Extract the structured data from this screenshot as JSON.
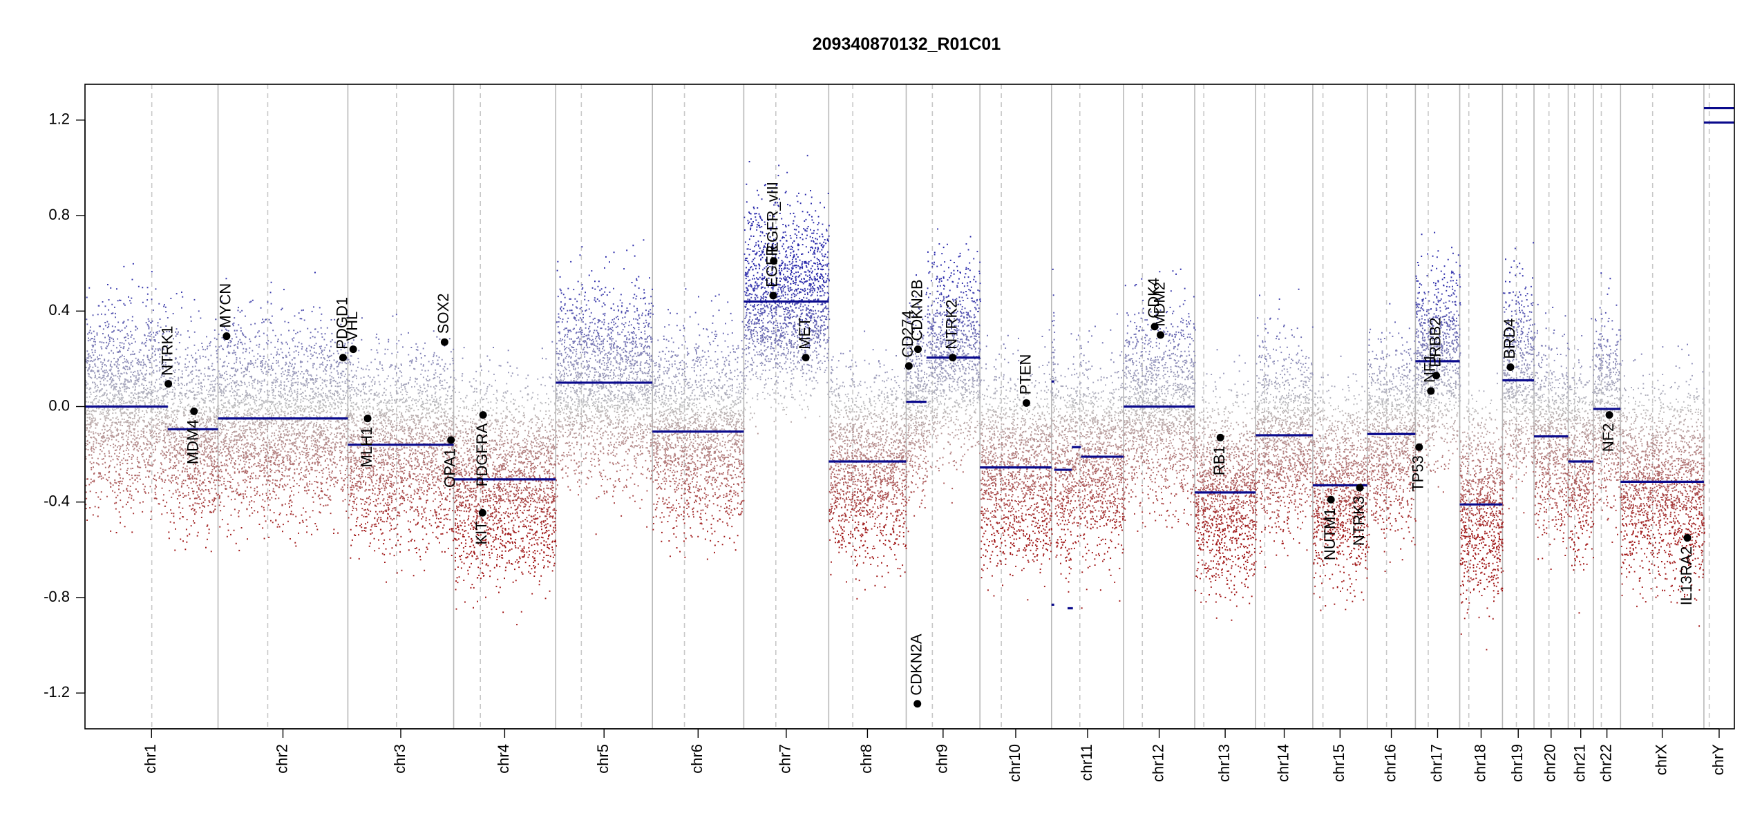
{
  "chart_data": {
    "type": "scatter",
    "title": "209340870132_R01C01",
    "xlabel": "",
    "ylabel": "",
    "ylim": [
      -1.35,
      1.35
    ],
    "yticks": [
      "1.2",
      "0.8",
      "0.4",
      "0.0",
      "-0.4",
      "-0.8",
      "-1.2"
    ],
    "grid": false,
    "colors": {
      "gain": "#3a3aa8",
      "loss": "#a01818",
      "neutral": "#bbbbbb",
      "segment": "#0a0a8c",
      "gene": "#000000"
    },
    "chromosomes": [
      {
        "name": "chr1",
        "size": 249,
        "centromere": 125
      },
      {
        "name": "chr2",
        "size": 243,
        "centromere": 93
      },
      {
        "name": "chr3",
        "size": 198,
        "centromere": 91
      },
      {
        "name": "chr4",
        "size": 191,
        "centromere": 50
      },
      {
        "name": "chr5",
        "size": 181,
        "centromere": 48
      },
      {
        "name": "chr6",
        "size": 171,
        "centromere": 60
      },
      {
        "name": "chr7",
        "size": 159,
        "centromere": 60
      },
      {
        "name": "chr8",
        "size": 145,
        "centromere": 45
      },
      {
        "name": "chr9",
        "size": 138,
        "centromere": 49
      },
      {
        "name": "chr10",
        "size": 134,
        "centromere": 40
      },
      {
        "name": "chr11",
        "size": 135,
        "centromere": 53
      },
      {
        "name": "chr12",
        "size": 133,
        "centromere": 35
      },
      {
        "name": "chr13",
        "size": 114,
        "centromere": 17
      },
      {
        "name": "chr14",
        "size": 107,
        "centromere": 17
      },
      {
        "name": "chr15",
        "size": 102,
        "centromere": 19
      },
      {
        "name": "chr16",
        "size": 90,
        "centromere": 36
      },
      {
        "name": "chr17",
        "size": 83,
        "centromere": 24
      },
      {
        "name": "chr18",
        "size": 80,
        "centromere": 17
      },
      {
        "name": "chr19",
        "size": 59,
        "centromere": 26
      },
      {
        "name": "chr20",
        "size": 64,
        "centromere": 28
      },
      {
        "name": "chr21",
        "size": 47,
        "centromere": 12
      },
      {
        "name": "chr22",
        "size": 51,
        "centromere": 15
      },
      {
        "name": "chrX",
        "size": 156,
        "centromere": 60
      },
      {
        "name": "chrY",
        "size": 57,
        "centromere": 10
      }
    ],
    "segments": [
      {
        "chr": "chr1",
        "start": 0,
        "end": 155,
        "value": 0.0
      },
      {
        "chr": "chr1",
        "start": 155,
        "end": 249,
        "value": -0.095
      },
      {
        "chr": "chr2",
        "start": 0,
        "end": 243,
        "value": -0.05
      },
      {
        "chr": "chr3",
        "start": 0,
        "end": 198,
        "value": -0.16
      },
      {
        "chr": "chr4",
        "start": 0,
        "end": 191,
        "value": -0.305
      },
      {
        "chr": "chr5",
        "start": 0,
        "end": 181,
        "value": 0.1
      },
      {
        "chr": "chr6",
        "start": 0,
        "end": 171,
        "value": -0.105
      },
      {
        "chr": "chr7",
        "start": 0,
        "end": 159,
        "value": 0.44
      },
      {
        "chr": "chr8",
        "start": 0,
        "end": 145,
        "value": -0.23
      },
      {
        "chr": "chr9",
        "start": 0,
        "end": 38,
        "value": 0.02
      },
      {
        "chr": "chr9",
        "start": 38,
        "end": 138,
        "value": 0.205
      },
      {
        "chr": "chr10",
        "start": 0,
        "end": 134,
        "value": -0.255
      },
      {
        "chr": "chr11",
        "start": 0,
        "end": 5,
        "value": 0.105
      },
      {
        "chr": "chr11",
        "start": 0,
        "end": 5,
        "value": -0.83
      },
      {
        "chr": "chr11",
        "start": 5,
        "end": 38,
        "value": -0.265
      },
      {
        "chr": "chr11",
        "start": 30,
        "end": 40,
        "value": -0.845
      },
      {
        "chr": "chr11",
        "start": 38,
        "end": 55,
        "value": -0.17
      },
      {
        "chr": "chr11",
        "start": 55,
        "end": 135,
        "value": -0.21
      },
      {
        "chr": "chr12",
        "start": 0,
        "end": 133,
        "value": 0.0
      },
      {
        "chr": "chr13",
        "start": 0,
        "end": 114,
        "value": -0.36
      },
      {
        "chr": "chr14",
        "start": 0,
        "end": 107,
        "value": -0.12
      },
      {
        "chr": "chr15",
        "start": 0,
        "end": 102,
        "value": -0.33
      },
      {
        "chr": "chr16",
        "start": 0,
        "end": 90,
        "value": -0.115
      },
      {
        "chr": "chr17",
        "start": 0,
        "end": 83,
        "value": 0.19
      },
      {
        "chr": "chr18",
        "start": 0,
        "end": 80,
        "value": -0.41
      },
      {
        "chr": "chr19",
        "start": 0,
        "end": 59,
        "value": 0.11
      },
      {
        "chr": "chr20",
        "start": 0,
        "end": 64,
        "value": -0.125
      },
      {
        "chr": "chr21",
        "start": 0,
        "end": 47,
        "value": -0.23
      },
      {
        "chr": "chr22",
        "start": 0,
        "end": 51,
        "value": -0.01
      },
      {
        "chr": "chrX",
        "start": 0,
        "end": 156,
        "value": -0.315
      },
      {
        "chr": "chrY",
        "start": 0,
        "end": 57,
        "value": 1.19
      },
      {
        "chr": "chrY",
        "start": 0,
        "end": 57,
        "value": 1.25
      }
    ],
    "genes": [
      {
        "name": "NTRK1",
        "chr": "chr1",
        "pos": 156,
        "value": 0.095,
        "label": "above"
      },
      {
        "name": "MDM4",
        "chr": "chr1",
        "pos": 204,
        "value": -0.02,
        "label": "below"
      },
      {
        "name": "MYCN",
        "chr": "chr2",
        "pos": 16,
        "value": 0.295,
        "label": "above"
      },
      {
        "name": "PDGD1",
        "chr": "chr2",
        "pos": 234,
        "value": 0.205,
        "label": "above"
      },
      {
        "name": "VHL",
        "chr": "chr3",
        "pos": 10,
        "value": 0.24,
        "label": "above"
      },
      {
        "name": "MLH1",
        "chr": "chr3",
        "pos": 37,
        "value": -0.05,
        "label": "below"
      },
      {
        "name": "SOX2",
        "chr": "chr3",
        "pos": 181,
        "value": 0.27,
        "label": "above"
      },
      {
        "name": "OPA1",
        "chr": "chr3",
        "pos": 193,
        "value": -0.14,
        "label": "below"
      },
      {
        "name": "PDGFRA",
        "chr": "chr4",
        "pos": 55,
        "value": -0.035,
        "label": "below"
      },
      {
        "name": "KIT",
        "chr": "chr4",
        "pos": 54,
        "value": -0.445,
        "label": "below"
      },
      {
        "name": "EGFR",
        "chr": "chr7",
        "pos": 55,
        "value": 0.465,
        "label": "above"
      },
      {
        "name": "EGFR_vIII",
        "chr": "chr7",
        "pos": 56,
        "value": 0.61,
        "label": "above"
      },
      {
        "name": "MET",
        "chr": "chr7",
        "pos": 116,
        "value": 0.205,
        "label": "above"
      },
      {
        "name": "CD274",
        "chr": "chr9",
        "pos": 5,
        "value": 0.17,
        "label": "above"
      },
      {
        "name": "CDKN2B",
        "chr": "chr9",
        "pos": 22,
        "value": 0.24,
        "label": "above"
      },
      {
        "name": "CDKN2A",
        "chr": "chr9",
        "pos": 21,
        "value": -1.245,
        "label": "above"
      },
      {
        "name": "NTRK2",
        "chr": "chr9",
        "pos": 87,
        "value": 0.205,
        "label": "above"
      },
      {
        "name": "PTEN",
        "chr": "chr10",
        "pos": 87,
        "value": 0.015,
        "label": "above"
      },
      {
        "name": "CDK4",
        "chr": "chr12",
        "pos": 58,
        "value": 0.335,
        "label": "above"
      },
      {
        "name": "MDM2",
        "chr": "chr12",
        "pos": 69,
        "value": 0.3,
        "label": "above"
      },
      {
        "name": "RB1",
        "chr": "chr13",
        "pos": 48,
        "value": -0.13,
        "label": "below"
      },
      {
        "name": "NUTM1",
        "chr": "chr15",
        "pos": 34,
        "value": -0.39,
        "label": "below"
      },
      {
        "name": "NTRK3",
        "chr": "chr15",
        "pos": 88,
        "value": -0.34,
        "label": "below"
      },
      {
        "name": "TP53",
        "chr": "chr17",
        "pos": 7,
        "value": -0.17,
        "label": "below"
      },
      {
        "name": "NF1",
        "chr": "chr17",
        "pos": 29,
        "value": 0.065,
        "label": "above"
      },
      {
        "name": "ERBB2",
        "chr": "chr17",
        "pos": 39,
        "value": 0.13,
        "label": "above"
      },
      {
        "name": "BRD4",
        "chr": "chr19",
        "pos": 15,
        "value": 0.165,
        "label": "above"
      },
      {
        "name": "NF2",
        "chr": "chr22",
        "pos": 30,
        "value": -0.035,
        "label": "below"
      },
      {
        "name": "IL13RA2",
        "chr": "chrX",
        "pos": 125,
        "value": -0.55,
        "label": "below"
      }
    ]
  }
}
